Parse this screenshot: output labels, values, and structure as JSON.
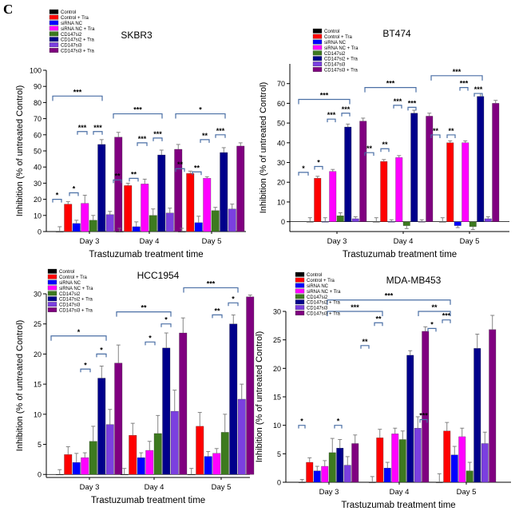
{
  "figure": {
    "panel_label": "C"
  },
  "legend_labels": [
    "Control",
    "Control + Tra",
    "siRNA NC",
    "siRNA NC + Tra",
    "CD147si2",
    "CD147si2 + Tra",
    "CD147si3",
    "CD147si3 + Tra"
  ],
  "colors": [
    "#000000",
    "#ff0000",
    "#0000ff",
    "#ff00ff",
    "#3d7a1f",
    "#00008b",
    "#7b3fe0",
    "#800080"
  ],
  "chart_data": [
    {
      "type": "bar",
      "title": "SKBR3",
      "xlabel": "Trastuzumab treatment time",
      "ylabel": "Inhibition (% of untreated Control)",
      "categories": [
        "Day 3",
        "Day 4",
        "Day 5"
      ],
      "ylim": [
        0,
        100
      ],
      "yticks": [
        "0",
        "10",
        "20",
        "30",
        "40",
        "50",
        "60",
        "70",
        "80",
        "90",
        "100"
      ],
      "series": [
        {
          "name": "Control",
          "values": [
            0,
            0,
            0
          ],
          "errors": [
            3,
            2,
            2
          ]
        },
        {
          "name": "Control + Tra",
          "values": [
            17,
            28.5,
            36
          ],
          "errors": [
            1.5,
            1.5,
            1.5
          ]
        },
        {
          "name": "siRNA NC",
          "values": [
            5,
            3,
            5.5
          ],
          "errors": [
            2,
            3,
            4
          ]
        },
        {
          "name": "siRNA NC + Tra",
          "values": [
            17.5,
            29.5,
            33
          ],
          "errors": [
            5,
            3,
            1
          ]
        },
        {
          "name": "CD147si2",
          "values": [
            7,
            10,
            13
          ],
          "errors": [
            3,
            4,
            2
          ]
        },
        {
          "name": "CD147si2 + Tra",
          "values": [
            54,
            47.5,
            49
          ],
          "errors": [
            3,
            3,
            3
          ]
        },
        {
          "name": "CD147si3",
          "values": [
            10.5,
            11.5,
            14
          ],
          "errors": [
            2,
            3,
            3
          ]
        },
        {
          "name": "CD147si3 + Tra",
          "values": [
            58.5,
            51,
            53
          ],
          "errors": [
            3,
            3,
            2
          ]
        }
      ],
      "annotations": [
        "*",
        "*",
        "***",
        "***",
        "***",
        "**",
        "**",
        "***",
        "***",
        "***",
        "**",
        "**",
        "**",
        "***",
        "*"
      ]
    },
    {
      "type": "bar",
      "title": "BT474",
      "xlabel": "Trastuzumab treatment time",
      "ylabel": "Inhibition (% of untreated Control)",
      "categories": [
        "Day 3",
        "Day 4",
        "Day 5"
      ],
      "ylim": [
        -5,
        80
      ],
      "yticks": [
        "0",
        "10",
        "20",
        "30",
        "40",
        "50",
        "60",
        "70"
      ],
      "series": [
        {
          "name": "Control",
          "values": [
            0,
            0,
            0
          ],
          "errors": [
            2,
            2,
            2
          ]
        },
        {
          "name": "Control + Tra",
          "values": [
            22,
            30.5,
            40
          ],
          "errors": [
            1,
            1,
            1
          ]
        },
        {
          "name": "siRNA NC",
          "values": [
            0,
            0,
            -2
          ],
          "errors": [
            2,
            1,
            1
          ]
        },
        {
          "name": "siRNA NC + Tra",
          "values": [
            25.5,
            32.5,
            40
          ],
          "errors": [
            1,
            1,
            1
          ]
        },
        {
          "name": "CD147si2",
          "values": [
            3,
            -2,
            -2.5
          ],
          "errors": [
            1.5,
            1.5,
            1.5
          ]
        },
        {
          "name": "CD147si2 + Tra",
          "values": [
            48,
            55,
            63.5
          ],
          "errors": [
            1.5,
            1.5,
            1.5
          ]
        },
        {
          "name": "CD147si3",
          "values": [
            1.5,
            0,
            1.5
          ],
          "errors": [
            1,
            1,
            1
          ]
        },
        {
          "name": "CD147si3 + Tra",
          "values": [
            51,
            53.5,
            60
          ],
          "errors": [
            1.5,
            1.5,
            1.5
          ]
        }
      ],
      "annotations": [
        "*",
        "*",
        "***",
        "***",
        "***",
        "**",
        "**",
        "***",
        "***",
        "***",
        "**",
        "**",
        "***",
        "***",
        "***"
      ]
    },
    {
      "type": "bar",
      "title": "HCC1954",
      "xlabel": "Trastuzumab treatment time",
      "ylabel": "Inhibition (% of untreated Control)",
      "categories": [
        "Day 3",
        "Day 4",
        "Day 5"
      ],
      "ylim": [
        -0.5,
        30
      ],
      "yticks": [
        "0",
        "5",
        "10",
        "15",
        "20",
        "25",
        "30"
      ],
      "series": [
        {
          "name": "Control",
          "values": [
            0,
            0,
            0
          ],
          "errors": [
            0.8,
            1.0,
            1.0
          ]
        },
        {
          "name": "Control + Tra",
          "values": [
            3.3,
            6.5,
            8
          ],
          "errors": [
            1.3,
            2.0,
            2.3
          ]
        },
        {
          "name": "siRNA NC",
          "values": [
            2,
            2.8,
            3
          ],
          "errors": [
            1.5,
            0.8,
            0.8
          ]
        },
        {
          "name": "siRNA NC + Tra",
          "values": [
            2.8,
            4,
            3.5
          ],
          "errors": [
            0.8,
            1.5,
            0.8
          ]
        },
        {
          "name": "CD147si2",
          "values": [
            5.5,
            6.8,
            7
          ],
          "errors": [
            2.5,
            3.0,
            3.0
          ]
        },
        {
          "name": "CD147si2 + Tra",
          "values": [
            16,
            21,
            25
          ],
          "errors": [
            2.0,
            2.5,
            1.5
          ]
        },
        {
          "name": "CD147si3",
          "values": [
            8.3,
            10.5,
            12.5
          ],
          "errors": [
            2.5,
            3.5,
            2.5
          ]
        },
        {
          "name": "CD147si3 + Tra",
          "values": [
            18.5,
            23.5,
            29.5
          ],
          "errors": [
            3.0,
            2.5,
            0.3
          ]
        }
      ],
      "annotations": [
        "*",
        "*",
        "*",
        "*",
        "*",
        "**",
        "**",
        "*",
        "***"
      ]
    },
    {
      "type": "bar",
      "title": "MDA-MB453",
      "xlabel": "Trastuzumab treatment time",
      "ylabel": "Inhibition (% of untreated Control)",
      "categories": [
        "Day 3",
        "Day 4",
        "Day 5"
      ],
      "ylim": [
        0,
        30
      ],
      "yticks": [
        "0",
        "5",
        "10",
        "15",
        "20",
        "25",
        "30"
      ],
      "series": [
        {
          "name": "Control",
          "values": [
            0,
            0,
            0
          ],
          "errors": [
            0.5,
            1.0,
            1.5
          ]
        },
        {
          "name": "Control + Tra",
          "values": [
            3.5,
            7.8,
            9
          ],
          "errors": [
            0.8,
            1.5,
            1.5
          ]
        },
        {
          "name": "siRNA NC",
          "values": [
            2,
            2.5,
            4.8
          ],
          "errors": [
            0.8,
            1.0,
            1.5
          ]
        },
        {
          "name": "siRNA NC + Tra",
          "values": [
            2.8,
            8.5,
            8
          ],
          "errors": [
            1.0,
            1.0,
            1.5
          ]
        },
        {
          "name": "CD147si2",
          "values": [
            5.2,
            7.5,
            2
          ],
          "errors": [
            2.5,
            1.5,
            1.5
          ]
        },
        {
          "name": "CD147si2 + Tra",
          "values": [
            6,
            22.3,
            23.5
          ],
          "errors": [
            1.5,
            0.8,
            2.5
          ]
        },
        {
          "name": "CD147si3",
          "values": [
            3,
            9.5,
            6.8
          ],
          "errors": [
            1.5,
            2.0,
            2.0
          ]
        },
        {
          "name": "CD147si3 + Tra",
          "values": [
            6.8,
            26.5,
            26.8
          ],
          "errors": [
            1.5,
            0.8,
            2.5
          ]
        }
      ],
      "annotations": [
        "*",
        "*",
        "**",
        "**",
        "***",
        "***",
        "*",
        "***",
        "**",
        "***"
      ]
    }
  ]
}
